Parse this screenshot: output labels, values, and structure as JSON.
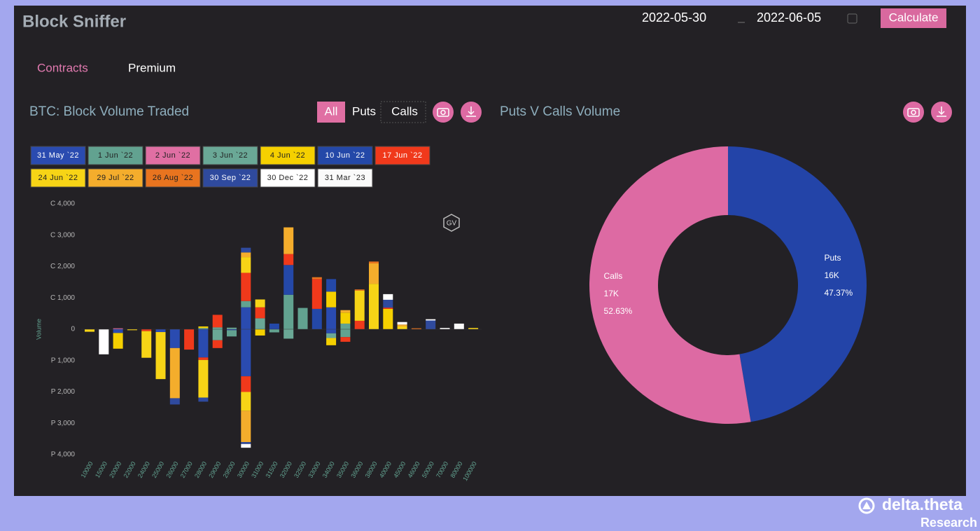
{
  "header": {
    "title": "Block Sniffer",
    "start_date": "2022-05-30",
    "end_date": "2022-06-05",
    "button": "Calculate"
  },
  "tabs": [
    "Contracts",
    "Premium"
  ],
  "badge": "GV",
  "watermark": {
    "brand": "delta.theta",
    "sub": "Research"
  },
  "chart_data": [
    {
      "type": "bar",
      "stacked": true,
      "title": "BTC: Block Volume Traded",
      "filters": [
        "All",
        "Puts",
        "Calls"
      ],
      "ylabel": "Volume",
      "categories": [
        "10000",
        "15000",
        "20000",
        "22000",
        "24000",
        "25000",
        "26000",
        "27000",
        "28000",
        "29000",
        "29500",
        "30000",
        "31000",
        "31500",
        "32000",
        "32500",
        "33000",
        "34000",
        "35000",
        "36000",
        "38000",
        "40000",
        "45000",
        "46000",
        "50000",
        "70000",
        "80000",
        "100000"
      ],
      "ylim": [
        -4000,
        4000
      ],
      "yticks": [
        {
          "value": 4000,
          "label": "C 4,000"
        },
        {
          "value": 3000,
          "label": "C 3,000"
        },
        {
          "value": 2000,
          "label": "C 2,000"
        },
        {
          "value": 1000,
          "label": "C 1,000"
        },
        0,
        {
          "value": -1000,
          "label": "P 1,000"
        },
        {
          "value": -2000,
          "label": "P 2,000"
        },
        {
          "value": -3000,
          "label": "P 3,000"
        },
        {
          "value": -4000,
          "label": "P 4,000"
        }
      ],
      "series": [
        {
          "name": "31 May `22",
          "color": "#2a4bb0",
          "calls": [
            null,
            null,
            null,
            null,
            null,
            null,
            null,
            null,
            null,
            null,
            null,
            700,
            null,
            null,
            null,
            null,
            null,
            700,
            null,
            null,
            null,
            null,
            null,
            null,
            null,
            null,
            null,
            null
          ],
          "puts": [
            null,
            null,
            -120,
            null,
            null,
            -90,
            -600,
            null,
            -900,
            null,
            -30,
            -1500,
            null,
            null,
            null,
            null,
            null,
            -130,
            null,
            null,
            null,
            null,
            null,
            null,
            null,
            null,
            null,
            null
          ]
        },
        {
          "name": "1 Jun `22",
          "color": "#62a290",
          "calls": [
            null,
            null,
            null,
            null,
            null,
            null,
            null,
            null,
            null,
            null,
            null,
            200,
            null,
            null,
            1100,
            680,
            null,
            null,
            180,
            null,
            null,
            null,
            null,
            null,
            null,
            null,
            null,
            null
          ],
          "puts": [
            null,
            null,
            null,
            null,
            null,
            null,
            null,
            null,
            null,
            null,
            -200,
            null,
            null,
            -100,
            null,
            null,
            null,
            null,
            -250,
            null,
            null,
            null,
            null,
            null,
            null,
            null,
            null,
            null
          ]
        },
        {
          "name": "2 Jun `22",
          "color": "#e06fa3",
          "calls": [
            null,
            null,
            30,
            null,
            null,
            null,
            null,
            null,
            null,
            null,
            null,
            null,
            null,
            null,
            null,
            null,
            null,
            null,
            null,
            null,
            null,
            null,
            null,
            null,
            null,
            null,
            null,
            null
          ]
        },
        {
          "name": "3 Jun `22",
          "color": "#6aa896",
          "calls": [
            null,
            null,
            null,
            null,
            null,
            null,
            null,
            null,
            40,
            60,
            50,
            null,
            350,
            null,
            null,
            null,
            null,
            null,
            null,
            null,
            null,
            null,
            null,
            null,
            null,
            null,
            null,
            null
          ],
          "puts": [
            null,
            null,
            null,
            null,
            null,
            null,
            null,
            null,
            null,
            -350,
            null,
            null,
            null,
            null,
            -300,
            null,
            null,
            -150,
            null,
            null,
            null,
            null,
            null,
            null,
            null,
            null,
            null,
            null
          ]
        },
        {
          "name": "4 Jun `22",
          "color": "#f5d000",
          "calls": [
            null,
            null,
            null,
            null,
            null,
            null,
            null,
            null,
            50,
            null,
            null,
            null,
            null,
            null,
            null,
            null,
            null,
            500,
            350,
            null,
            null,
            650,
            null,
            null,
            null,
            null,
            null,
            null
          ],
          "puts": [
            null,
            null,
            -500,
            null,
            null,
            null,
            null,
            null,
            null,
            null,
            null,
            null,
            -200,
            null,
            null,
            null,
            null,
            -230,
            null,
            null,
            null,
            null,
            null,
            null,
            null,
            null,
            null,
            null
          ]
        },
        {
          "name": "10 Jun `22",
          "color": "#2448a8",
          "calls": [
            null,
            null,
            null,
            null,
            null,
            null,
            null,
            null,
            null,
            null,
            null,
            null,
            null,
            180,
            950,
            null,
            650,
            400,
            null,
            null,
            null,
            null,
            null,
            null,
            null,
            null,
            null,
            null
          ]
        },
        {
          "name": "17 Jun `22",
          "color": "#f0391b",
          "calls": [
            null,
            null,
            null,
            null,
            null,
            null,
            null,
            null,
            null,
            400,
            null,
            900,
            350,
            null,
            350,
            null,
            950,
            null,
            null,
            270,
            null,
            40,
            null,
            null,
            null,
            null,
            null,
            null
          ],
          "puts": [
            null,
            null,
            null,
            null,
            -60,
            null,
            null,
            -650,
            -80,
            -250,
            null,
            -500,
            null,
            null,
            null,
            null,
            null,
            null,
            -150,
            null,
            null,
            null,
            null,
            null,
            null,
            null,
            null,
            null
          ]
        },
        {
          "name": "24 Jun `22",
          "color": "#f7d416",
          "calls": [
            null,
            null,
            null,
            null,
            null,
            null,
            null,
            null,
            null,
            null,
            null,
            500,
            250,
            null,
            null,
            null,
            null,
            null,
            null,
            960,
            1450,
            null,
            90,
            null,
            null,
            null,
            null,
            40
          ],
          "puts": [
            -80,
            null,
            null,
            -30,
            -850,
            -1500,
            null,
            null,
            -1200,
            null,
            null,
            -600,
            null,
            null,
            null,
            null,
            null,
            null,
            null,
            null,
            null,
            null,
            null,
            null,
            null,
            null,
            null,
            null
          ]
        },
        {
          "name": "29 Jul `22",
          "color": "#f4ad2c",
          "calls": [
            null,
            null,
            null,
            null,
            null,
            null,
            null,
            null,
            null,
            null,
            null,
            150,
            null,
            null,
            850,
            null,
            null,
            null,
            80,
            null,
            650,
            null,
            60,
            null,
            null,
            null,
            null,
            null
          ],
          "puts": [
            null,
            null,
            null,
            null,
            null,
            null,
            -1600,
            null,
            null,
            null,
            null,
            -1000,
            null,
            null,
            null,
            null,
            null,
            null,
            null,
            null,
            null,
            null,
            null,
            null,
            null,
            null,
            null,
            null
          ]
        },
        {
          "name": "26 Aug `22",
          "color": "#e8741f",
          "calls": [
            null,
            null,
            null,
            null,
            null,
            null,
            null,
            null,
            null,
            null,
            null,
            null,
            null,
            null,
            null,
            null,
            60,
            null,
            null,
            40,
            60,
            null,
            null,
            30,
            null,
            null,
            null,
            null
          ]
        },
        {
          "name": "30 Sep `22",
          "color": "#2f4a9e",
          "calls": [
            null,
            null,
            null,
            null,
            null,
            null,
            null,
            null,
            null,
            null,
            null,
            150,
            null,
            null,
            null,
            null,
            null,
            null,
            null,
            null,
            null,
            250,
            null,
            null,
            280,
            null,
            null,
            null
          ],
          "puts": [
            null,
            null,
            null,
            null,
            null,
            null,
            -200,
            null,
            -130,
            null,
            null,
            -60,
            null,
            null,
            null,
            null,
            null,
            null,
            null,
            null,
            null,
            null,
            null,
            null,
            null,
            null,
            null,
            null
          ]
        },
        {
          "name": "30 Dec `22",
          "color": "#ffffff",
          "calls": [
            null,
            null,
            null,
            null,
            null,
            null,
            null,
            null,
            null,
            null,
            null,
            null,
            null,
            null,
            null,
            null,
            null,
            null,
            null,
            null,
            null,
            180,
            80,
            null,
            40,
            40,
            null,
            null
          ],
          "puts": [
            null,
            -800,
            null,
            null,
            null,
            null,
            null,
            null,
            null,
            null,
            null,
            null,
            null,
            null,
            null,
            null,
            null,
            null,
            null,
            null,
            null,
            null,
            null,
            null,
            null,
            null,
            null,
            null
          ]
        },
        {
          "name": "31 Mar `23",
          "color": "#fafafa",
          "calls": [
            null,
            null,
            null,
            null,
            null,
            null,
            null,
            null,
            null,
            null,
            null,
            null,
            null,
            null,
            null,
            null,
            null,
            null,
            null,
            null,
            null,
            null,
            null,
            null,
            null,
            null,
            180,
            null
          ],
          "puts": [
            null,
            null,
            null,
            null,
            null,
            null,
            null,
            null,
            null,
            null,
            null,
            -120,
            null,
            null,
            null,
            null,
            null,
            null,
            null,
            null,
            null,
            null,
            null,
            null,
            null,
            null,
            null,
            null
          ]
        }
      ]
    },
    {
      "type": "pie",
      "donut": true,
      "title": "Puts V Calls Volume",
      "categories": [
        "Puts",
        "Calls"
      ],
      "colors": [
        "#2344a8",
        "#dd6aa3"
      ],
      "values": [
        47.37,
        52.63
      ],
      "value_labels": [
        "47.37%",
        "52.63%"
      ],
      "volumes": [
        16000,
        17000
      ],
      "volume_labels": [
        "16K",
        "17K"
      ]
    }
  ]
}
